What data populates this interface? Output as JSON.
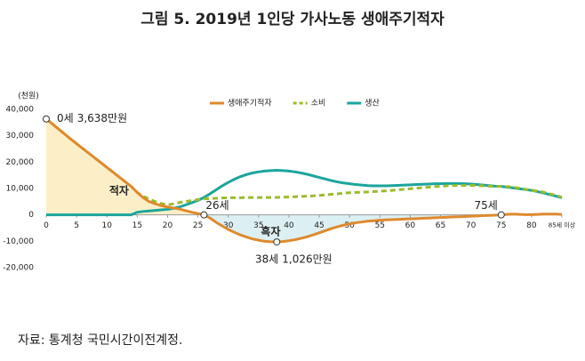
{
  "chart_data": {
    "type": "line",
    "title": "그림 5. 2019년 1인당 가사노동 생애주기적자",
    "y_label": "(천원)",
    "source": "자료: 통계청 국민시간이전계정.",
    "x": [
      0,
      1,
      2,
      3,
      4,
      5,
      6,
      7,
      8,
      9,
      10,
      11,
      12,
      13,
      14,
      15,
      16,
      17,
      18,
      19,
      20,
      21,
      22,
      23,
      24,
      25,
      26,
      27,
      28,
      29,
      30,
      31,
      32,
      33,
      34,
      35,
      36,
      37,
      38,
      39,
      40,
      41,
      42,
      43,
      44,
      45,
      46,
      47,
      48,
      49,
      50,
      51,
      52,
      53,
      54,
      55,
      56,
      57,
      58,
      59,
      60,
      61,
      62,
      63,
      64,
      65,
      66,
      67,
      68,
      69,
      70,
      71,
      72,
      73,
      74,
      75,
      76,
      77,
      78,
      79,
      80,
      81,
      82,
      83,
      84,
      85
    ],
    "xlim": [
      0,
      85
    ],
    "xticks": [
      0,
      5,
      10,
      15,
      20,
      25,
      30,
      35,
      40,
      45,
      50,
      55,
      60,
      65,
      70,
      75,
      80,
      {
        "value": 85,
        "label": "85세 이상"
      }
    ],
    "ylim": [
      -20000,
      40000
    ],
    "yticks": [
      {
        "value": -20000,
        "label": "-20,000"
      },
      {
        "value": -10000,
        "label": "-10,000"
      },
      0,
      {
        "value": 10000,
        "label": "10,000"
      },
      {
        "value": 20000,
        "label": "20,000"
      },
      {
        "value": 30000,
        "label": "30,000"
      },
      {
        "value": 40000,
        "label": "40,000"
      }
    ],
    "legend": "top",
    "series": [
      {
        "name": "생애주기적자",
        "color": "#de8a2e",
        "style": "solid",
        "values": [
          36380,
          34500,
          32600,
          30700,
          28800,
          27000,
          25200,
          23400,
          21600,
          19800,
          18000,
          16200,
          14400,
          12600,
          10800,
          8500,
          6500,
          5000,
          4200,
          3500,
          3000,
          2600,
          2200,
          1600,
          1000,
          500,
          0,
          -1200,
          -2800,
          -4200,
          -5500,
          -6600,
          -7600,
          -8400,
          -9100,
          -9600,
          -10000,
          -10200,
          -10260,
          -10100,
          -9800,
          -9400,
          -8900,
          -8300,
          -7600,
          -6800,
          -6000,
          -5200,
          -4500,
          -3900,
          -3400,
          -3000,
          -2700,
          -2400,
          -2200,
          -2000,
          -1900,
          -1800,
          -1700,
          -1600,
          -1500,
          -1400,
          -1300,
          -1200,
          -1100,
          -1000,
          -900,
          -800,
          -700,
          -600,
          -500,
          -400,
          -300,
          -200,
          -100,
          0,
          200,
          300,
          200,
          100,
          100,
          200,
          300,
          300,
          300,
          200
        ],
        "value_labels": [
          "3,638만원",
          null,
          null,
          null,
          null,
          null,
          null,
          null,
          null,
          null,
          null,
          null,
          null,
          null,
          null,
          null,
          null,
          null,
          null,
          null,
          null,
          null,
          null,
          null,
          null,
          null,
          null,
          null,
          null,
          null,
          null,
          null,
          null,
          null,
          null,
          null,
          null,
          null,
          "1,026만원",
          null,
          null,
          null,
          null,
          null,
          null,
          null,
          null,
          null,
          null,
          null,
          null,
          null,
          null,
          null,
          null,
          null,
          null,
          null,
          null,
          null,
          null,
          null,
          null,
          null,
          null,
          null,
          null,
          null,
          null,
          null,
          null,
          null,
          null,
          null,
          null,
          null,
          null,
          null,
          null,
          null,
          null,
          null,
          null,
          null,
          null,
          null
        ]
      },
      {
        "name": "소비",
        "color": "#9cbb2c",
        "style": "dashed",
        "values": [
          36380,
          34500,
          32600,
          30700,
          28800,
          27000,
          25200,
          23400,
          21600,
          19800,
          18000,
          16200,
          14400,
          12600,
          10800,
          8500,
          7000,
          6000,
          5000,
          4300,
          3800,
          4200,
          4700,
          5100,
          5400,
          5800,
          6100,
          6200,
          6300,
          6400,
          6500,
          6500,
          6500,
          6600,
          6600,
          6600,
          6600,
          6600,
          6640,
          6700,
          6800,
          6900,
          7000,
          7100,
          7200,
          7400,
          7600,
          7800,
          8000,
          8200,
          8400,
          8500,
          8600,
          8700,
          8800,
          9000,
          9100,
          9300,
          9500,
          9700,
          9900,
          10100,
          10300,
          10500,
          10700,
          10800,
          11000,
          11100,
          11200,
          11200,
          11200,
          11100,
          11000,
          10900,
          10800,
          10800,
          10700,
          10500,
          10100,
          9700,
          9400,
          9000,
          8600,
          8000,
          7400,
          6700
        ]
      },
      {
        "name": "생산",
        "color": "#1ca59c",
        "style": "solid",
        "values": [
          0,
          0,
          0,
          0,
          0,
          0,
          0,
          0,
          0,
          0,
          0,
          0,
          0,
          0,
          0,
          1000,
          1300,
          1500,
          1700,
          1900,
          2100,
          2500,
          3000,
          3800,
          4600,
          5500,
          6600,
          8000,
          9500,
          11000,
          12300,
          13500,
          14500,
          15300,
          15900,
          16300,
          16600,
          16800,
          16900,
          16800,
          16600,
          16300,
          15900,
          15400,
          14800,
          14200,
          13600,
          13000,
          12500,
          12100,
          11800,
          11500,
          11300,
          11100,
          11000,
          11000,
          11000,
          11100,
          11200,
          11300,
          11400,
          11500,
          11600,
          11700,
          11800,
          11800,
          11900,
          11900,
          11900,
          11800,
          11700,
          11500,
          11300,
          11100,
          10900,
          10800,
          10500,
          10200,
          9900,
          9600,
          9300,
          8800,
          8300,
          7700,
          7100,
          6500
        ]
      }
    ],
    "annotations": [
      {
        "text": "0세",
        "x": 0
      },
      {
        "text": "26세",
        "x": 26
      },
      {
        "text": "38세",
        "x": 38
      },
      {
        "text": "75세",
        "x": 75
      }
    ],
    "region_labels": [
      "적자",
      "흑자"
    ]
  }
}
